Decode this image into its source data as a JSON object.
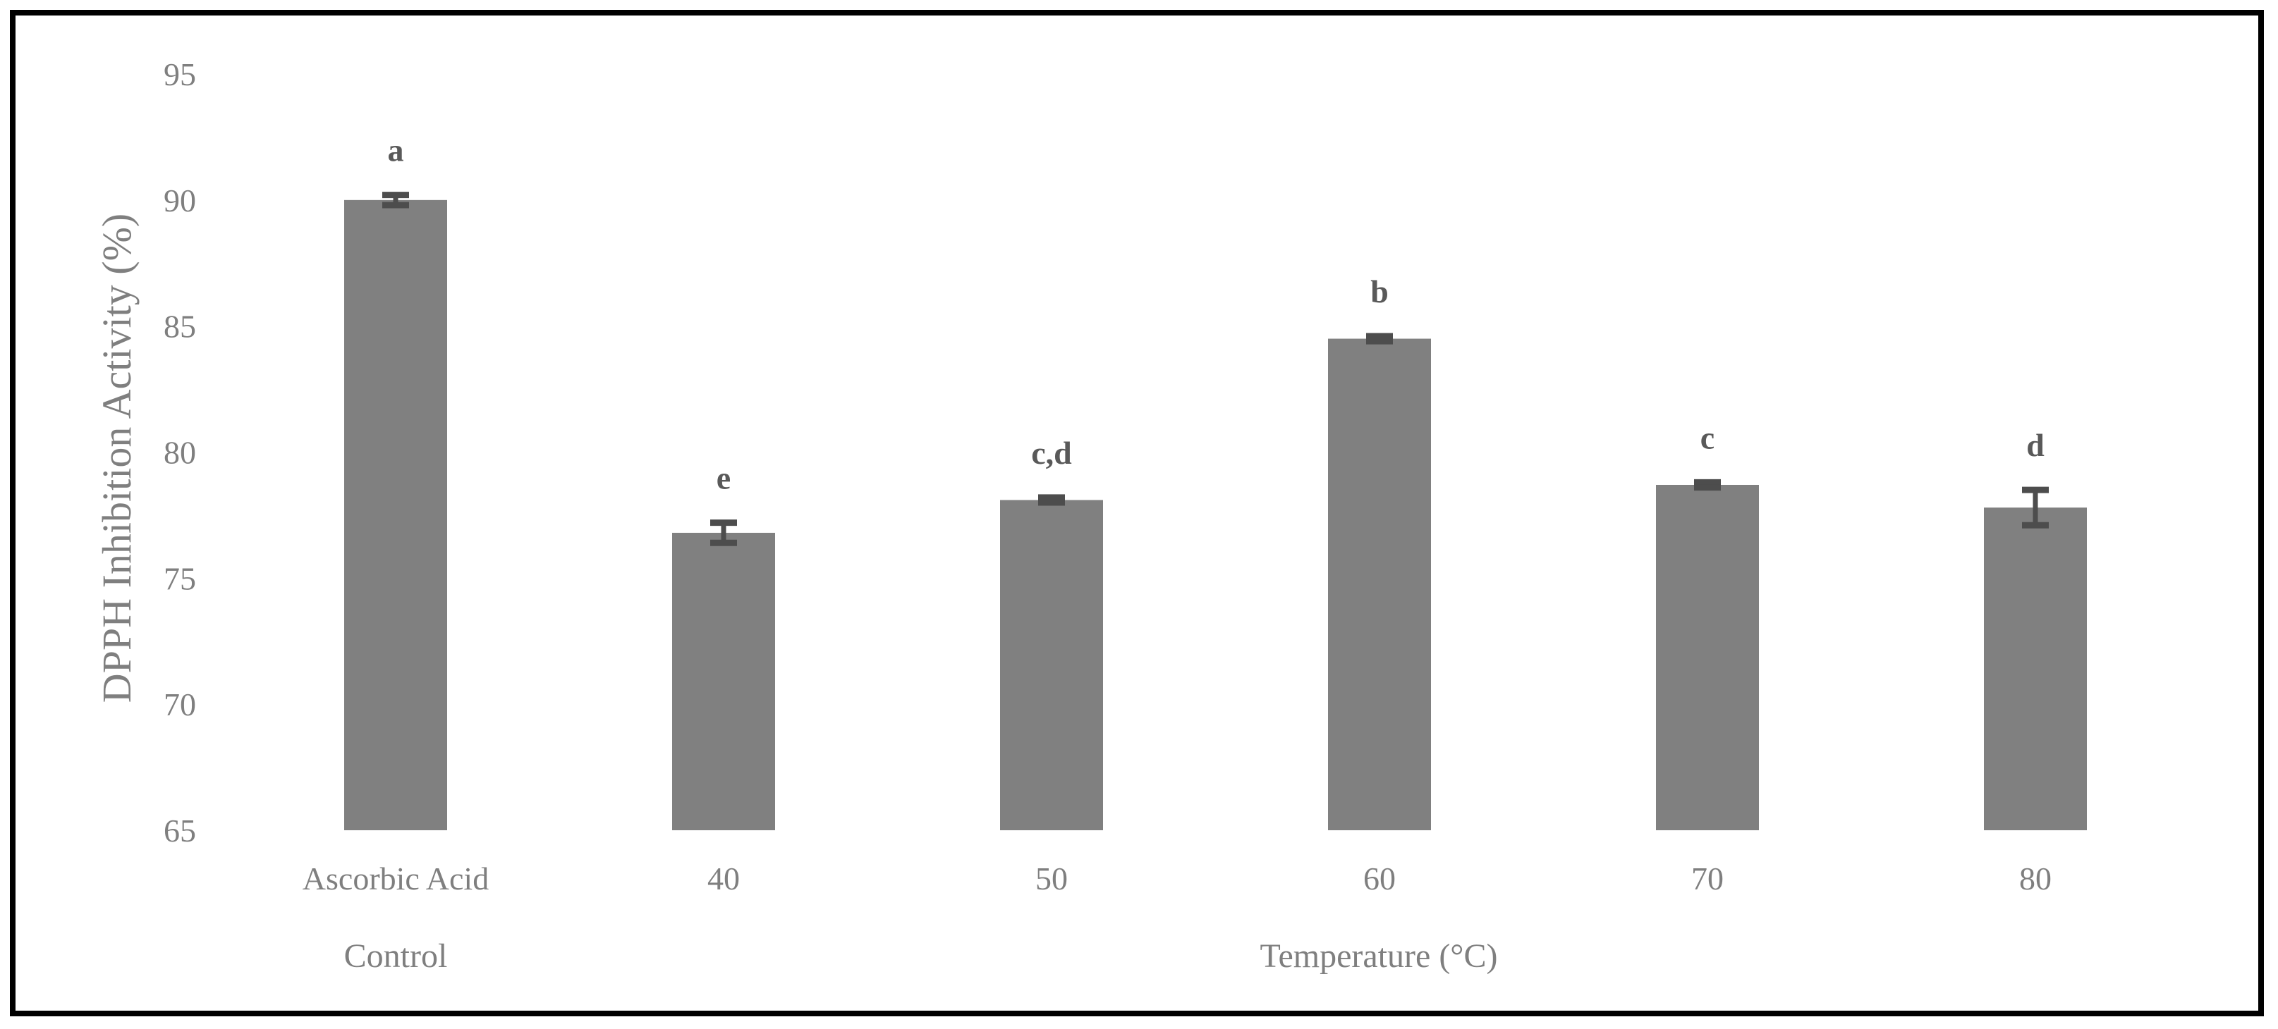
{
  "chart_data": {
    "type": "bar",
    "title": "",
    "ylabel": "DPPH Inhibition Activity (%)",
    "categories": [
      "Ascorbic Acid",
      "40",
      "50",
      "60",
      "70",
      "80"
    ],
    "values": [
      90.0,
      76.8,
      78.1,
      84.5,
      78.7,
      77.8
    ],
    "errors": [
      0.2,
      0.4,
      0.1,
      0.1,
      0.1,
      0.7
    ],
    "significance_labels": [
      "a",
      "e",
      "c,d",
      "b",
      "c",
      "d"
    ],
    "ylim": [
      65,
      95
    ],
    "yticks": [
      "65",
      "70",
      "75",
      "80",
      "85",
      "90",
      "95"
    ],
    "group_labels": [
      "Control",
      "Temperature (°C)"
    ],
    "grid": false,
    "legend": "none",
    "colors": {
      "bar": "#808080",
      "error_bar": "#4d4d4d",
      "text": "#7f7f7f",
      "sig_text": "#595959",
      "frame": "#000000"
    }
  }
}
